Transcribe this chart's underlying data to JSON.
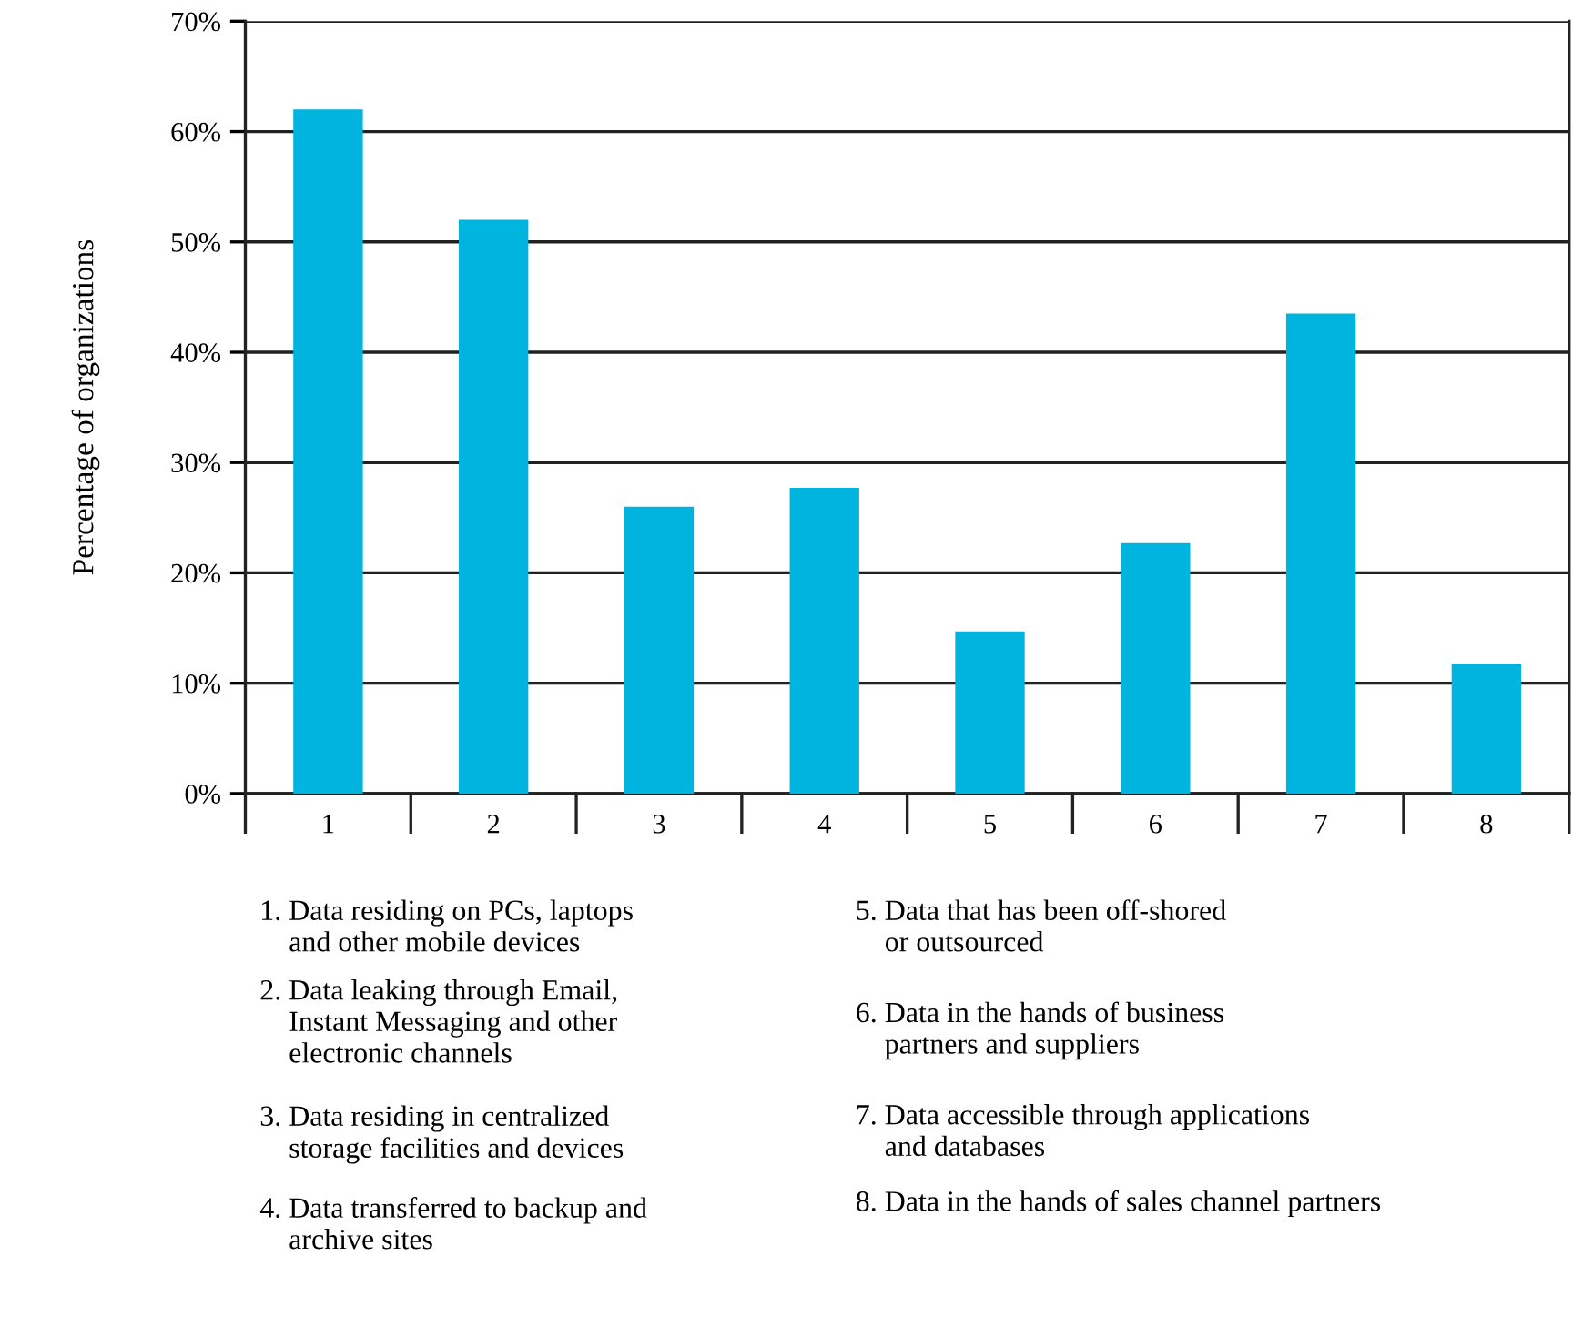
{
  "chart_data": {
    "type": "bar",
    "ylabel": "Percentage of organizations",
    "categories": [
      "1",
      "2",
      "3",
      "4",
      "5",
      "6",
      "7",
      "8"
    ],
    "values": [
      62,
      52,
      26,
      27.7,
      14.7,
      22.7,
      43.5,
      11.7
    ],
    "color": "#00b4e0",
    "ylim": [
      0,
      70
    ],
    "yticks": [
      {
        "value": 0,
        "label": "0%"
      },
      {
        "value": 10,
        "label": "10%"
      },
      {
        "value": 20,
        "label": "20%"
      },
      {
        "value": 30,
        "label": "30%"
      },
      {
        "value": 40,
        "label": "40%"
      },
      {
        "value": 50,
        "label": "50%"
      },
      {
        "value": 60,
        "label": "60%"
      },
      {
        "value": 70,
        "label": "70%"
      }
    ],
    "grid": "y",
    "annotations": [
      "1. Data residing on PCs, laptops\n    and other mobile devices",
      "2. Data leaking through Email,\n    Instant Messaging and other\n    electronic channels",
      "3. Data residing in centralized\n    storage facilities and devices",
      "4. Data transferred to backup and\n    archive sites",
      "5. Data that has been off-shored\n    or outsourced",
      "6. Data in the hands of business\n    partners and suppliers",
      "7. Data accessible through applications\n    and databases",
      "8. Data in the hands of sales channel partners"
    ]
  }
}
